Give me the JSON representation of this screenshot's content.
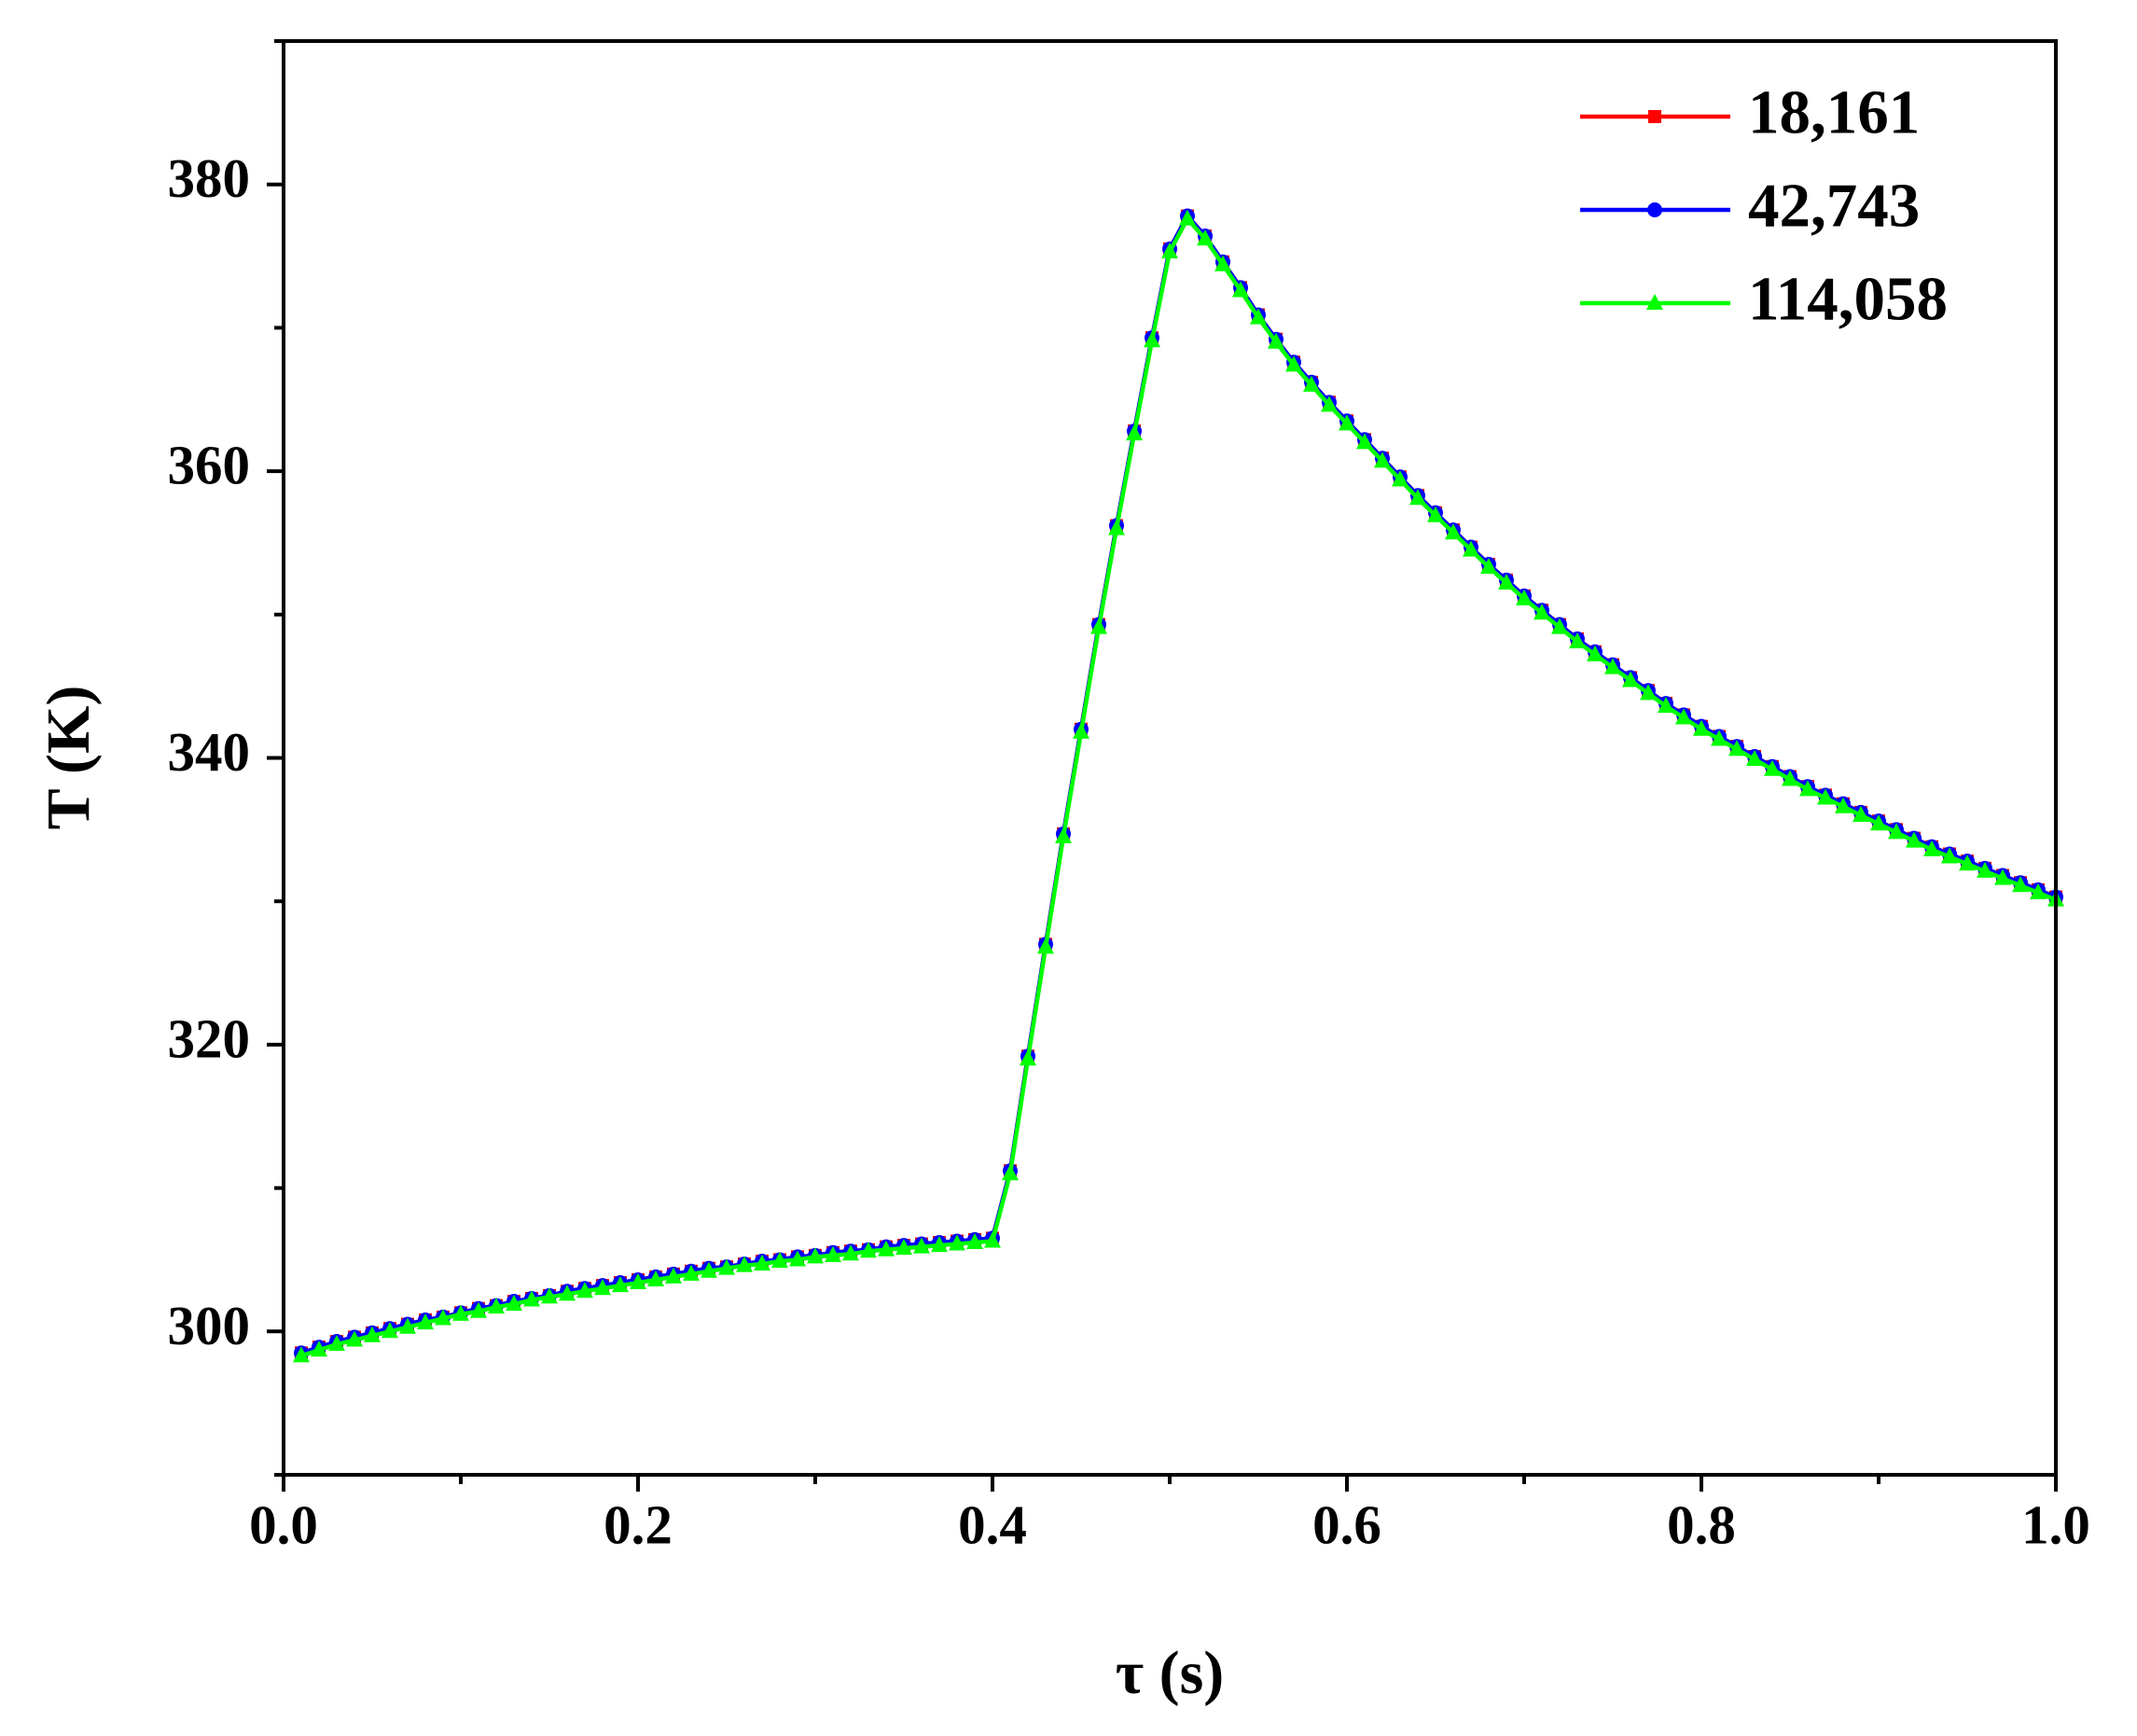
{
  "chart_data": {
    "type": "line",
    "x_label": "τ (s)",
    "y_label": "T (K)",
    "x": [
      0.01,
      0.02,
      0.03,
      0.04,
      0.05,
      0.06,
      0.07,
      0.08,
      0.09,
      0.1,
      0.11,
      0.12,
      0.13,
      0.14,
      0.15,
      0.16,
      0.17,
      0.18,
      0.19,
      0.2,
      0.21,
      0.22,
      0.23,
      0.24,
      0.25,
      0.26,
      0.27,
      0.28,
      0.29,
      0.3,
      0.31,
      0.32,
      0.33,
      0.34,
      0.35,
      0.36,
      0.37,
      0.38,
      0.39,
      0.4,
      0.41,
      0.42,
      0.43,
      0.44,
      0.45,
      0.46,
      0.47,
      0.48,
      0.49,
      0.5,
      0.51,
      0.52,
      0.53,
      0.54,
      0.55,
      0.56,
      0.57,
      0.58,
      0.59,
      0.6,
      0.61,
      0.62,
      0.63,
      0.64,
      0.65,
      0.66,
      0.67,
      0.68,
      0.69,
      0.7,
      0.71,
      0.72,
      0.73,
      0.74,
      0.75,
      0.76,
      0.77,
      0.78,
      0.79,
      0.8,
      0.81,
      0.82,
      0.83,
      0.84,
      0.85,
      0.86,
      0.87,
      0.88,
      0.89,
      0.9,
      0.91,
      0.92,
      0.93,
      0.94,
      0.95,
      0.96,
      0.97,
      0.98,
      0.99,
      1.0
    ],
    "series": [
      {
        "name": "18,161",
        "color": "#ff0000",
        "marker": "square",
        "values": [
          298.5,
          298.9,
          299.3,
          299.6,
          299.9,
          300.2,
          300.5,
          300.8,
          301.0,
          301.3,
          301.6,
          301.8,
          302.1,
          302.3,
          302.5,
          302.8,
          303.0,
          303.2,
          303.4,
          303.6,
          303.8,
          304.0,
          304.2,
          304.4,
          304.5,
          304.7,
          304.9,
          305.0,
          305.2,
          305.3,
          305.5,
          305.6,
          305.7,
          305.9,
          306.0,
          306.1,
          306.2,
          306.3,
          306.4,
          306.5,
          311.2,
          319.2,
          327.0,
          334.7,
          342.0,
          349.3,
          356.2,
          362.8,
          369.3,
          375.5,
          377.8,
          376.4,
          374.6,
          372.8,
          370.9,
          369.2,
          367.6,
          366.2,
          364.8,
          363.5,
          362.2,
          360.9,
          359.6,
          358.3,
          357.1,
          355.9,
          354.7,
          353.5,
          352.4,
          351.3,
          350.3,
          349.3,
          348.3,
          347.4,
          346.5,
          345.6,
          344.7,
          343.8,
          343.0,
          342.2,
          341.5,
          340.8,
          340.1,
          339.4,
          338.7,
          338.0,
          337.4,
          336.8,
          336.2,
          335.6,
          335.0,
          334.4,
          333.8,
          333.3,
          332.8,
          332.3,
          331.8,
          331.3,
          330.8,
          330.3
        ]
      },
      {
        "name": "42,743",
        "color": "#0000ff",
        "marker": "circle",
        "values": [
          298.5,
          298.9,
          299.3,
          299.6,
          299.9,
          300.2,
          300.5,
          300.8,
          301.0,
          301.3,
          301.6,
          301.8,
          302.1,
          302.3,
          302.5,
          302.8,
          303.0,
          303.2,
          303.4,
          303.6,
          303.8,
          304.0,
          304.2,
          304.4,
          304.5,
          304.7,
          304.9,
          305.0,
          305.2,
          305.3,
          305.5,
          305.6,
          305.7,
          305.9,
          306.0,
          306.1,
          306.2,
          306.3,
          306.4,
          306.5,
          311.2,
          319.2,
          327.0,
          334.7,
          342.0,
          349.3,
          356.2,
          362.8,
          369.3,
          375.5,
          377.8,
          376.4,
          374.6,
          372.8,
          370.9,
          369.2,
          367.6,
          366.2,
          364.8,
          363.5,
          362.2,
          360.9,
          359.6,
          358.3,
          357.1,
          355.9,
          354.7,
          353.5,
          352.4,
          351.3,
          350.3,
          349.3,
          348.3,
          347.4,
          346.5,
          345.6,
          344.7,
          343.8,
          343.0,
          342.2,
          341.5,
          340.8,
          340.1,
          339.4,
          338.7,
          338.0,
          337.4,
          336.8,
          336.2,
          335.6,
          335.0,
          334.4,
          333.8,
          333.3,
          332.8,
          332.3,
          331.8,
          331.3,
          330.8,
          330.3
        ]
      },
      {
        "name": "114,058",
        "color": "#00ff00",
        "marker": "triangle",
        "values": [
          298.3,
          298.7,
          299.1,
          299.4,
          299.7,
          300.0,
          300.3,
          300.6,
          300.9,
          301.2,
          301.4,
          301.7,
          301.9,
          302.2,
          302.4,
          302.6,
          302.8,
          303.0,
          303.2,
          303.4,
          303.6,
          303.8,
          304.0,
          304.2,
          304.4,
          304.6,
          304.7,
          304.9,
          305.0,
          305.2,
          305.3,
          305.4,
          305.6,
          305.7,
          305.8,
          305.9,
          306.0,
          306.1,
          306.2,
          306.3,
          311.0,
          319.0,
          326.8,
          334.5,
          341.8,
          349.1,
          356.0,
          362.6,
          369.1,
          375.3,
          377.6,
          376.2,
          374.4,
          372.6,
          370.7,
          369.0,
          367.4,
          366.0,
          364.6,
          363.3,
          362.0,
          360.7,
          359.4,
          358.1,
          356.9,
          355.7,
          354.5,
          353.3,
          352.2,
          351.1,
          350.1,
          349.1,
          348.1,
          347.2,
          346.3,
          345.4,
          344.5,
          343.6,
          342.8,
          342.0,
          341.3,
          340.6,
          339.9,
          339.2,
          338.5,
          337.8,
          337.2,
          336.6,
          336.0,
          335.4,
          334.8,
          334.2,
          333.6,
          333.1,
          332.6,
          332.1,
          331.6,
          331.1,
          330.6,
          330.1
        ]
      }
    ],
    "xlim": [
      0,
      1.0
    ],
    "xticks": [
      {
        "value": 0,
        "label": "0.0"
      },
      0.2,
      0.4,
      0.6,
      0.8,
      {
        "value": 1.0,
        "label": "1.0"
      }
    ],
    "xminorticks": [
      0.1,
      0.3,
      0.5,
      0.7,
      0.9
    ],
    "ylim": [
      290,
      390
    ],
    "yticks": [
      300,
      320,
      340,
      360,
      380
    ],
    "yminorticks": [
      290,
      310,
      330,
      350,
      370,
      390
    ],
    "legend": "upper right",
    "grid": false
  }
}
